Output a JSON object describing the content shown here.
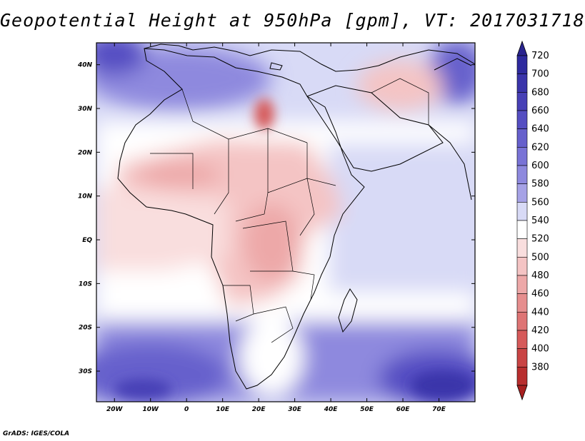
{
  "title": "Geopotential Height at 950hPa [gpm], VT: 2017031718",
  "credit": "GrADS: IGES/COLA",
  "map": {
    "variable": "Geopotential Height",
    "level": "950hPa",
    "units": "gpm",
    "valid_time": "2017031718",
    "lon_range": [
      -25,
      80
    ],
    "lat_range": [
      -37,
      45
    ],
    "lon_ticks": [
      {
        "value": -20,
        "label": "20W"
      },
      {
        "value": -10,
        "label": "10W"
      },
      {
        "value": 0,
        "label": "0"
      },
      {
        "value": 10,
        "label": "10E"
      },
      {
        "value": 20,
        "label": "20E"
      },
      {
        "value": 30,
        "label": "30E"
      },
      {
        "value": 40,
        "label": "40E"
      },
      {
        "value": 50,
        "label": "50E"
      },
      {
        "value": 60,
        "label": "60E"
      },
      {
        "value": 70,
        "label": "70E"
      }
    ],
    "lat_ticks": [
      {
        "value": 40,
        "label": "40N"
      },
      {
        "value": 30,
        "label": "30N"
      },
      {
        "value": 20,
        "label": "20N"
      },
      {
        "value": 10,
        "label": "10N"
      },
      {
        "value": 0,
        "label": "EQ"
      },
      {
        "value": -10,
        "label": "10S"
      },
      {
        "value": -20,
        "label": "20S"
      },
      {
        "value": -30,
        "label": "30S"
      }
    ]
  },
  "colorbar": {
    "levels": [
      {
        "label": "720",
        "color": "#2e2a9e"
      },
      {
        "label": "700",
        "color": "#3a34aa"
      },
      {
        "label": "680",
        "color": "#4740b6"
      },
      {
        "label": "660",
        "color": "#554ec2"
      },
      {
        "label": "640",
        "color": "#6660cc"
      },
      {
        "label": "620",
        "color": "#7973d6"
      },
      {
        "label": "600",
        "color": "#8e89de"
      },
      {
        "label": "580",
        "color": "#a6a2e6"
      },
      {
        "label": "560",
        "color": "#d8daf6"
      },
      {
        "label": "540",
        "color": "#ffffff"
      },
      {
        "label": "520",
        "color": "#f9dede"
      },
      {
        "label": "500",
        "color": "#f4c4c4"
      },
      {
        "label": "480",
        "color": "#eda8a8"
      },
      {
        "label": "460",
        "color": "#e68e8e"
      },
      {
        "label": "440",
        "color": "#de7474"
      },
      {
        "label": "420",
        "color": "#d65a5a"
      },
      {
        "label": "400",
        "color": "#c94444"
      },
      {
        "label": "380",
        "color": "#b82e2e"
      }
    ],
    "top_color": "#2a248f",
    "bottom_color": "#a82020"
  }
}
